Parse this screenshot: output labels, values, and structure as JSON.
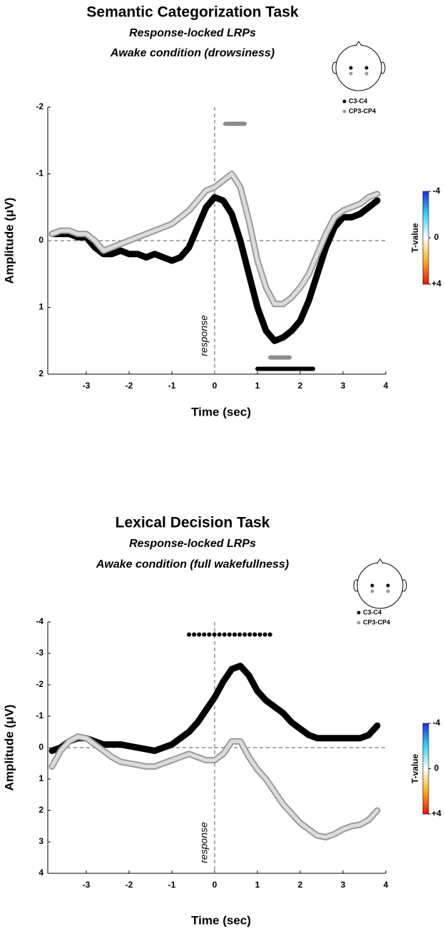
{
  "chart_data": [
    {
      "type": "line",
      "title": "Semantic Categorization Task",
      "subtitles": [
        "Response-locked LRPs",
        "Awake condition (drowsiness)"
      ],
      "x_label": "Time (sec)",
      "y_label": "Amplitude (μV)",
      "annotation": "response",
      "xlim": [
        -3.9,
        4
      ],
      "xticks": [
        -3,
        -2,
        -1,
        0,
        1,
        2,
        3,
        4
      ],
      "ylim": [
        -2,
        2
      ],
      "yticks": [
        -2,
        -1,
        0,
        1,
        2
      ],
      "y_inverted": true,
      "x": [
        -3.8,
        -3.6,
        -3.4,
        -3.2,
        -3.0,
        -2.8,
        -2.6,
        -2.4,
        -2.2,
        -2.0,
        -1.8,
        -1.6,
        -1.4,
        -1.2,
        -1.0,
        -0.8,
        -0.6,
        -0.4,
        -0.2,
        0,
        0.2,
        0.4,
        0.6,
        0.8,
        1.0,
        1.2,
        1.4,
        1.6,
        1.8,
        2.0,
        2.2,
        2.4,
        2.6,
        2.8,
        3.0,
        3.2,
        3.4,
        3.6,
        3.8
      ],
      "series": [
        {
          "name": "C3-C4",
          "color": "#000000",
          "edge_color": "#000000",
          "values": [
            -0.1,
            -0.1,
            -0.1,
            -0.05,
            -0.05,
            0.1,
            0.2,
            0.2,
            0.15,
            0.2,
            0.2,
            0.25,
            0.2,
            0.25,
            0.3,
            0.25,
            0.1,
            -0.2,
            -0.5,
            -0.65,
            -0.6,
            -0.4,
            0,
            0.5,
            1.0,
            1.35,
            1.5,
            1.45,
            1.35,
            1.2,
            0.9,
            0.5,
            0.1,
            -0.2,
            -0.35,
            -0.35,
            -0.4,
            -0.5,
            -0.6
          ]
        },
        {
          "name": "CP3-CP4",
          "color": "#dcdcdc",
          "edge_color": "#9a9a9a",
          "values": [
            -0.1,
            -0.15,
            -0.15,
            -0.1,
            -0.1,
            0,
            0.15,
            0.1,
            0.05,
            0,
            -0.05,
            -0.1,
            -0.15,
            -0.2,
            -0.25,
            -0.35,
            -0.45,
            -0.6,
            -0.75,
            -0.8,
            -0.9,
            -1.0,
            -0.8,
            -0.3,
            0.3,
            0.7,
            0.95,
            0.95,
            0.85,
            0.7,
            0.5,
            0.2,
            -0.1,
            -0.35,
            -0.45,
            -0.5,
            -0.55,
            -0.65,
            -0.7
          ]
        }
      ],
      "significance_bars": [
        {
          "color": "#8c8c8c",
          "xrange": [
            0.25,
            0.7
          ],
          "y": -1.75,
          "dotted": false
        },
        {
          "color": "#8c8c8c",
          "xrange": [
            1.3,
            1.75
          ],
          "y": 1.75,
          "dotted": false
        },
        {
          "color": "#000000",
          "xrange": [
            1.0,
            2.3
          ],
          "y": 1.92,
          "dotted": false
        }
      ],
      "colorbar": {
        "label": "T-value",
        "lim": [
          -4,
          4
        ],
        "ticks": [
          -4,
          0,
          {
            "value": 4,
            "label": "+4"
          }
        ]
      }
    },
    {
      "type": "line",
      "title": "Lexical Decision Task",
      "subtitles": [
        "Response-locked LRPs",
        "Awake condition (full wakefullness)"
      ],
      "x_label": "Time (sec)",
      "y_label": "Amplitude (μV)",
      "annotation": "response",
      "xlim": [
        -3.9,
        4
      ],
      "xticks": [
        -3,
        -2,
        -1,
        0,
        1,
        2,
        3,
        4
      ],
      "ylim": [
        -4,
        4
      ],
      "yticks": [
        -4,
        -3,
        -2,
        -1,
        0,
        1,
        2,
        3,
        4
      ],
      "y_inverted": true,
      "x": [
        -3.8,
        -3.6,
        -3.4,
        -3.2,
        -3.0,
        -2.8,
        -2.6,
        -2.4,
        -2.2,
        -2.0,
        -1.8,
        -1.6,
        -1.4,
        -1.2,
        -1.0,
        -0.8,
        -0.6,
        -0.4,
        -0.2,
        0,
        0.2,
        0.4,
        0.6,
        0.8,
        1.0,
        1.2,
        1.4,
        1.6,
        1.8,
        2.0,
        2.2,
        2.4,
        2.6,
        2.8,
        3.0,
        3.2,
        3.4,
        3.6,
        3.8
      ],
      "series": [
        {
          "name": "C3-C4",
          "color": "#000000",
          "edge_color": "#000000",
          "values": [
            0.1,
            0,
            -0.2,
            -0.3,
            -0.3,
            -0.2,
            -0.1,
            -0.1,
            -0.1,
            -0.05,
            0,
            0.05,
            0.1,
            0,
            -0.1,
            -0.3,
            -0.5,
            -0.8,
            -1.2,
            -1.6,
            -2.1,
            -2.5,
            -2.6,
            -2.3,
            -1.8,
            -1.5,
            -1.3,
            -1.1,
            -0.8,
            -0.6,
            -0.4,
            -0.3,
            -0.3,
            -0.3,
            -0.3,
            -0.3,
            -0.3,
            -0.4,
            -0.7
          ]
        },
        {
          "name": "CP3-CP4",
          "color": "#dcdcdc",
          "edge_color": "#9a9a9a",
          "values": [
            0.6,
            0.1,
            -0.2,
            -0.35,
            -0.3,
            -0.1,
            0.1,
            0.3,
            0.45,
            0.5,
            0.55,
            0.6,
            0.6,
            0.5,
            0.4,
            0.3,
            0.2,
            0.3,
            0.4,
            0.4,
            0.2,
            -0.2,
            -0.2,
            0.3,
            0.7,
            1.0,
            1.4,
            1.8,
            2.1,
            2.4,
            2.6,
            2.8,
            2.85,
            2.75,
            2.6,
            2.5,
            2.45,
            2.3,
            2.0
          ]
        }
      ],
      "significance_bars": [
        {
          "color": "#000000",
          "xrange": [
            -0.6,
            1.4
          ],
          "y": -3.6,
          "dotted": true
        }
      ],
      "colorbar": {
        "label": "T-value",
        "lim": [
          -4,
          4
        ],
        "ticks": [
          -4,
          0,
          {
            "value": 4,
            "label": "+4"
          }
        ]
      }
    }
  ]
}
